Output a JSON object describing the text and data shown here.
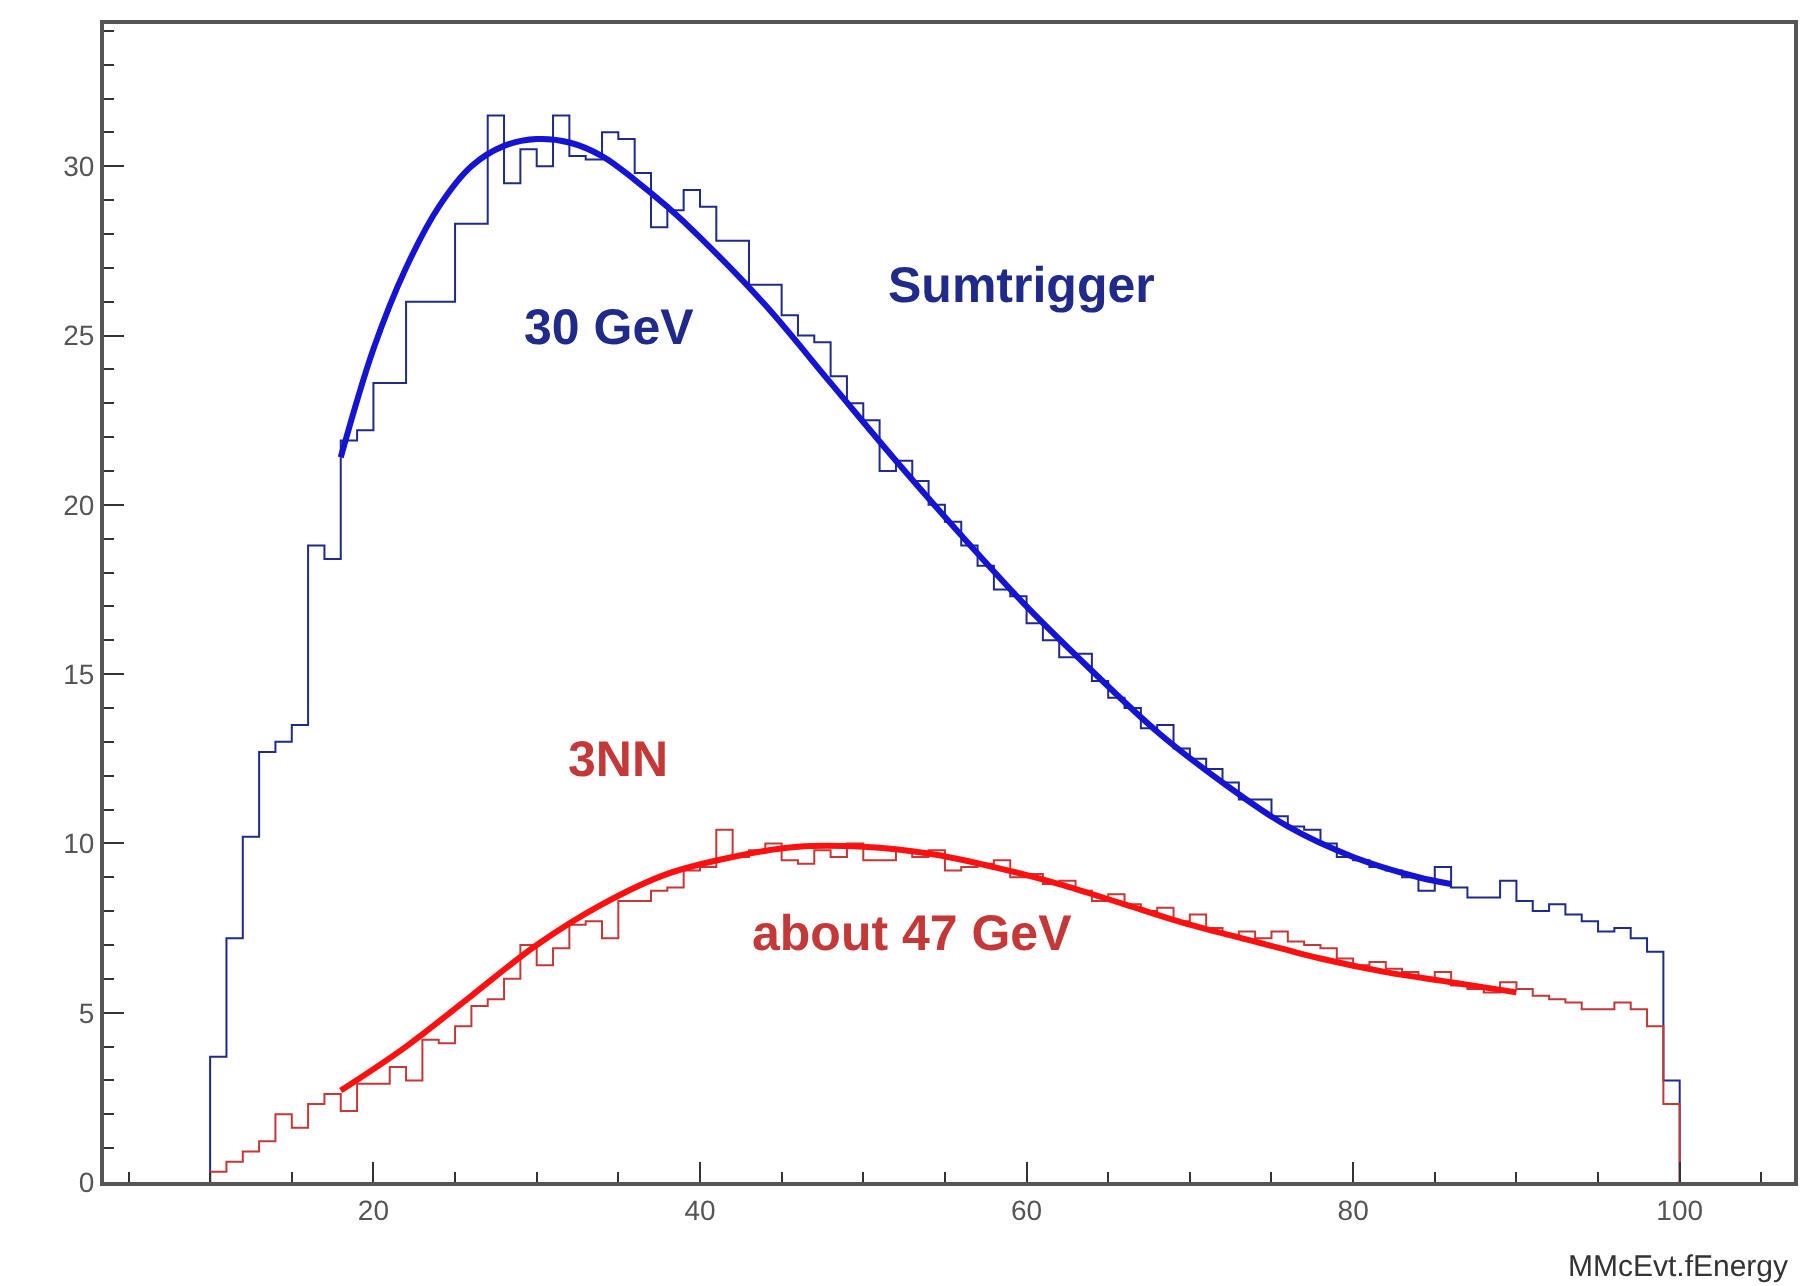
{
  "chart_data": {
    "type": "histogram",
    "xlabel": "MMcEvt.fEnergy",
    "bins": [
      10,
      11,
      12,
      13,
      14,
      15,
      16,
      17,
      18,
      19,
      20,
      21,
      22,
      23,
      24,
      25,
      26,
      27,
      28,
      29,
      30,
      31,
      32,
      33,
      34,
      35,
      36,
      37,
      38,
      39,
      40,
      41,
      42,
      43,
      44,
      45,
      46,
      47,
      48,
      49,
      50,
      51,
      52,
      53,
      54,
      55,
      56,
      57,
      58,
      59,
      60,
      61,
      62,
      63,
      64,
      65,
      66,
      67,
      68,
      69,
      70,
      71,
      72,
      73,
      74,
      75,
      76,
      77,
      78,
      79,
      80,
      81,
      82,
      83,
      84,
      85,
      86,
      87,
      88,
      89,
      90,
      91,
      92,
      93,
      94,
      95,
      96,
      97,
      98,
      99,
      100
    ],
    "series": [
      {
        "name": "Sumtrigger",
        "color": "#1f2a8a",
        "values": [
          3.7,
          7.2,
          10.2,
          12.7,
          13.0,
          13.5,
          18.8,
          18.4,
          21.9,
          22.2,
          23.6,
          23.6,
          26,
          26,
          26,
          28.3,
          28.3,
          31.5,
          29.5,
          30.5,
          30,
          31.5,
          30.3,
          30.2,
          31,
          30.8,
          29.8,
          28.2,
          28.7,
          29.3,
          28.8,
          27.8,
          27.8,
          26.5,
          26.5,
          25.6,
          25,
          24.8,
          23.8,
          23,
          22.5,
          21,
          21.3,
          20.7,
          20,
          19.5,
          18.8,
          18.2,
          17.5,
          17.3,
          16.5,
          16,
          15.5,
          15.6,
          14.8,
          14.3,
          14,
          13.4,
          13.5,
          12.8,
          12.5,
          12.2,
          11.8,
          11.3,
          11.3,
          10.8,
          10.5,
          10.4,
          10,
          9.6,
          9.5,
          9.3,
          9.2,
          9.0,
          8.6,
          9.3,
          8.7,
          8.4,
          8.4,
          8.9,
          8.3,
          8.0,
          8.2,
          7.9,
          7.7,
          7.4,
          7.5,
          7.2,
          6.8,
          3.0
        ]
      },
      {
        "name": "3NN",
        "color": "#c43838",
        "values": [
          0.3,
          0.6,
          0.9,
          1.2,
          2.0,
          1.6,
          2.3,
          2.6,
          2.1,
          2.9,
          2.9,
          3.4,
          3.0,
          4.2,
          4.1,
          4.6,
          5.2,
          5.4,
          6.0,
          7.0,
          6.4,
          6.9,
          7.6,
          7.7,
          7.2,
          8.3,
          8.3,
          8.6,
          8.7,
          9.2,
          9.3,
          10.4,
          9.6,
          9.8,
          10.0,
          9.5,
          9.4,
          9.8,
          9.6,
          10.0,
          9.5,
          9.5,
          9.8,
          9.6,
          9.8,
          9.2,
          9.3,
          9.4,
          9.5,
          9.0,
          9.1,
          8.8,
          8.9,
          8.6,
          8.3,
          8.5,
          8.2,
          8.0,
          8.1,
          7.7,
          7.9,
          7.5,
          7.3,
          7.4,
          7.2,
          7.4,
          7.1,
          7.0,
          6.9,
          6.6,
          6.4,
          6.5,
          6.3,
          6.2,
          6.0,
          6.2,
          5.8,
          5.7,
          5.6,
          5.9,
          5.7,
          5.5,
          5.4,
          5.3,
          5.1,
          5.1,
          5.3,
          5.1,
          4.6,
          2.3
        ]
      },
      {
        "type": "line",
        "color": "#1414d2",
        "x": [
          18,
          20,
          22,
          24,
          26,
          28,
          30,
          32,
          34,
          36,
          38,
          40,
          44,
          48,
          52,
          56,
          60,
          64,
          68,
          72,
          76,
          80,
          84,
          86
        ],
        "values": [
          21.4,
          24.6,
          27,
          28.8,
          30,
          30.6,
          30.8,
          30.7,
          30.3,
          29.6,
          28.8,
          27.9,
          25.9,
          23.6,
          21.3,
          19.1,
          17,
          15.1,
          13.3,
          11.8,
          10.5,
          9.6,
          9,
          8.8
        ]
      },
      {
        "type": "line",
        "color": "#ff1010",
        "x": [
          18,
          22,
          26,
          30,
          34,
          38,
          42,
          46,
          50,
          54,
          58,
          62,
          66,
          70,
          74,
          78,
          82,
          86,
          90
        ],
        "values": [
          2.7,
          4.0,
          5.5,
          7.0,
          8.2,
          9.1,
          9.6,
          9.9,
          9.9,
          9.7,
          9.3,
          8.8,
          8.2,
          7.6,
          7.1,
          6.6,
          6.2,
          5.9,
          5.6
        ]
      }
    ],
    "annotations": [
      "30 GeV",
      "about 47 GeV"
    ],
    "xlim": [
      3.5,
      107
    ],
    "xticks": [
      20,
      40,
      60,
      80,
      100
    ],
    "ylim": [
      0,
      34.2
    ],
    "yticks": [
      0,
      5,
      10,
      15,
      20,
      25,
      30
    ]
  }
}
